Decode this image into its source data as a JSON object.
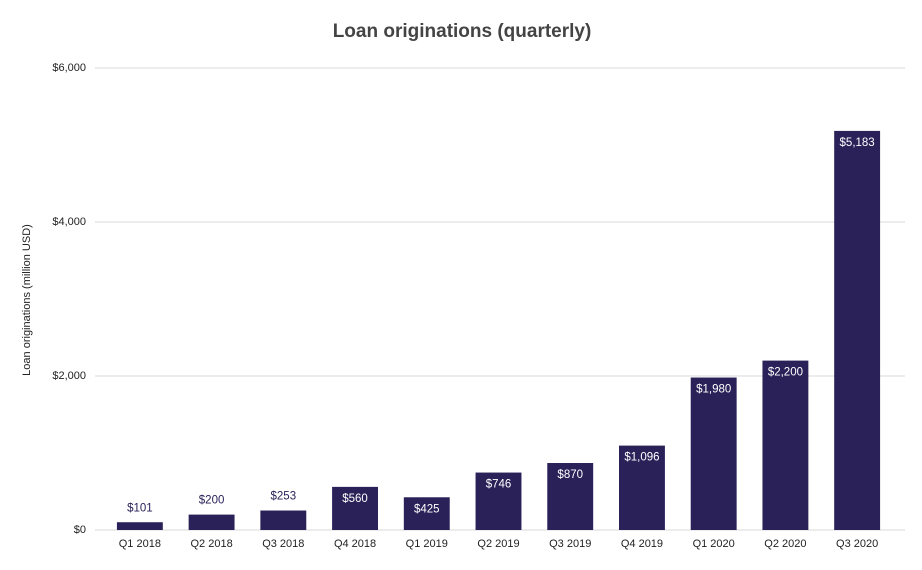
{
  "chart_data": {
    "type": "bar",
    "title": "Loan originations (quarterly)",
    "y_label": "Loan originations (million USD)",
    "categories": [
      "Q1 2018",
      "Q2 2018",
      "Q3 2018",
      "Q4 2018",
      "Q1 2019",
      "Q2 2019",
      "Q3 2019",
      "Q4 2019",
      "Q1 2020",
      "Q2 2020",
      "Q3 2020"
    ],
    "values": [
      101,
      200,
      253,
      560,
      425,
      746,
      870,
      1096,
      1980,
      2200,
      5183
    ],
    "value_labels": [
      "$101",
      "$200",
      "$253",
      "$560",
      "$425",
      "$746",
      "$870",
      "$1,096",
      "$1,980",
      "$2,200",
      "$5,183"
    ],
    "color": "#2a2158",
    "ylim": [
      0,
      6000
    ],
    "yticks": [
      {
        "value": 0,
        "label": "$0"
      },
      {
        "value": 2000,
        "label": "$2,000"
      },
      {
        "value": 4000,
        "label": "$4,000"
      },
      {
        "value": 6000,
        "label": "$6,000"
      }
    ],
    "grid": true
  }
}
